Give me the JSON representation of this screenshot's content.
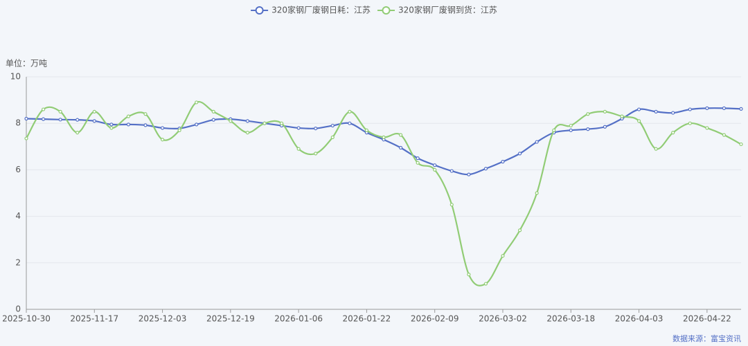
{
  "chart_data": {
    "type": "line",
    "y_axis_label": "单位：万吨",
    "source": "数据来源：富宝资讯",
    "categories": [
      "2025-10-30",
      null,
      null,
      null,
      "2025-11-17",
      null,
      null,
      null,
      "2025-12-03",
      null,
      null,
      null,
      "2025-12-19",
      null,
      null,
      null,
      "2026-01-06",
      null,
      null,
      null,
      "2026-01-22",
      null,
      null,
      null,
      "2026-02-09",
      null,
      null,
      null,
      "2026-03-02",
      null,
      null,
      null,
      "2026-03-18",
      null,
      null,
      null,
      "2026-04-03",
      null,
      null,
      null,
      "2026-04-22",
      null,
      null
    ],
    "series": [
      {
        "name": "320家钢厂废钢日耗：江苏",
        "color": "#5470c6",
        "values": [
          8.2,
          8.18,
          8.16,
          8.15,
          8.1,
          7.95,
          7.95,
          7.92,
          7.8,
          7.78,
          7.95,
          8.15,
          8.18,
          8.1,
          8.0,
          7.9,
          7.8,
          7.78,
          7.9,
          8.0,
          7.6,
          7.3,
          6.95,
          6.5,
          6.2,
          5.95,
          5.8,
          6.05,
          6.35,
          6.7,
          7.2,
          7.6,
          7.7,
          7.75,
          7.85,
          8.2,
          8.6,
          8.5,
          8.45,
          8.6,
          8.65,
          8.65,
          8.62
        ]
      },
      {
        "name": "320家钢厂废钢到货：江苏",
        "color": "#91cc75",
        "values": [
          7.35,
          8.6,
          8.5,
          7.6,
          8.5,
          7.8,
          8.3,
          8.4,
          7.3,
          7.7,
          8.9,
          8.5,
          8.1,
          7.6,
          8.0,
          8.0,
          6.9,
          6.7,
          7.4,
          8.5,
          7.7,
          7.4,
          7.5,
          6.3,
          6.0,
          4.5,
          1.5,
          1.1,
          2.3,
          3.4,
          5.0,
          7.7,
          7.9,
          8.4,
          8.5,
          8.3,
          8.1,
          6.9,
          7.6,
          8.0,
          7.8,
          7.5,
          7.1
        ]
      }
    ],
    "ylim": [
      0,
      10
    ],
    "yticks": [
      0,
      2,
      4,
      6,
      8,
      10
    ],
    "grid": true,
    "legend": "top"
  }
}
